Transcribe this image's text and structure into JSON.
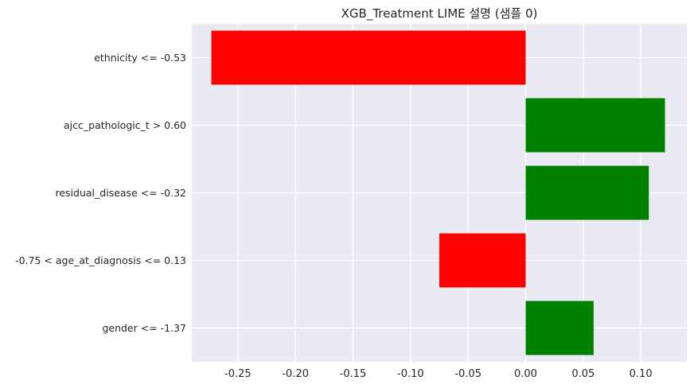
{
  "chart_data": {
    "type": "bar",
    "orientation": "horizontal",
    "title": "XGB_Treatment LIME 설명 (샘플 0)",
    "xlabel": "",
    "ylabel": "",
    "categories": [
      "ethnicity <= -0.53",
      "ajcc_pathologic_t > 0.60",
      "residual_disease <= -0.32",
      "-0.75 < age_at_diagnosis <= 0.13",
      "gender <= -1.37"
    ],
    "values": [
      -0.273,
      0.121,
      0.107,
      -0.075,
      0.059
    ],
    "xlim": [
      -0.29,
      0.14
    ],
    "xticks": [
      -0.25,
      -0.2,
      -0.15,
      -0.1,
      -0.05,
      0.0,
      0.05,
      0.1
    ],
    "xtick_labels": [
      "-0.25",
      "-0.20",
      "-0.15",
      "-0.10",
      "-0.05",
      "0.00",
      "0.05",
      "0.10"
    ],
    "grid": true,
    "colors": {
      "positive": "#008000",
      "negative": "#ff0000",
      "background": "#eaeaf2",
      "grid": "#ffffff"
    }
  }
}
